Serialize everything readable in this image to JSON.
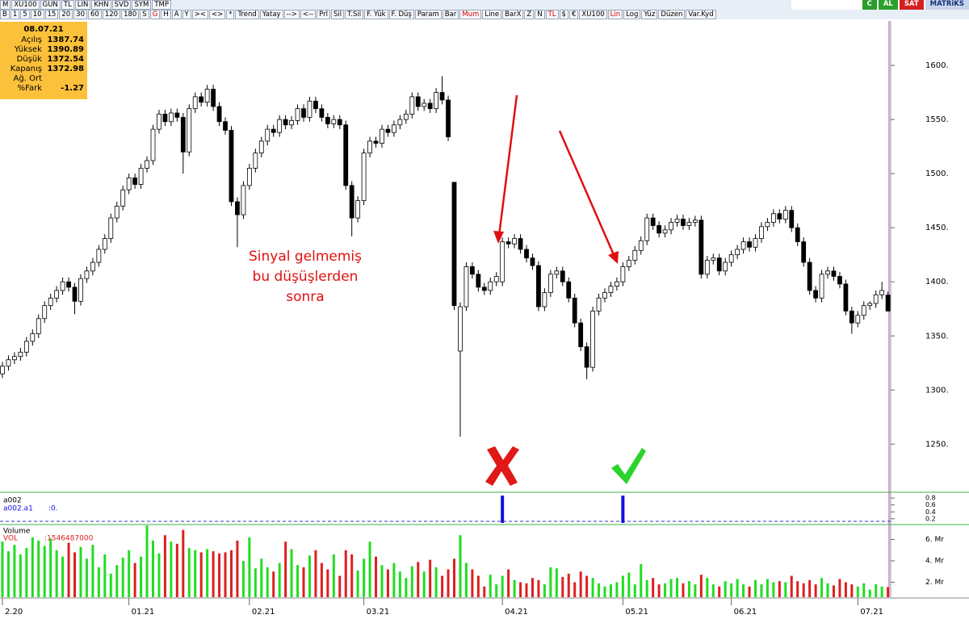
{
  "toolbar": {
    "row1_left": [
      "M",
      "XU100",
      "GUN",
      "TL",
      "LIN",
      "KHN",
      "SVD",
      "SYM",
      "TMP"
    ],
    "row1_right": [
      "C",
      "AL",
      "SAT",
      "MATRiKS"
    ],
    "row2": [
      "B",
      "1",
      "5",
      "10",
      "15",
      "20",
      "30",
      "60",
      "120",
      "180",
      "S",
      "G",
      "H",
      "A",
      "Y",
      "><",
      "<>",
      "*",
      "Trend",
      "Yatay",
      "-->",
      "<--",
      "Prl",
      "Sil",
      "T.Sil",
      "F. Yük",
      "F. Düş",
      "Param",
      "Bar",
      "Mum",
      "Line",
      "BarX",
      "Z",
      "N",
      "TL",
      "$",
      "€",
      "XU100",
      "Lin",
      "Log",
      "Yüz",
      "Düzen",
      "Var.Kyd"
    ]
  },
  "info_box": {
    "date": "08.07.21",
    "labels": [
      "Açılış",
      "Yüksek",
      "Düşük",
      "Kapanış",
      "Ağ. Ort",
      "%Fark"
    ],
    "fark": -1.27
  },
  "chart_data": [
    {
      "type": "candlestick",
      "categories": [
        "2.20",
        null,
        null,
        null,
        null,
        null,
        null,
        null,
        null,
        null,
        null,
        null,
        null,
        null,
        null,
        null,
        null,
        null,
        null,
        null,
        null,
        "01.21",
        null,
        null,
        null,
        null,
        null,
        null,
        null,
        null,
        null,
        null,
        null,
        null,
        null,
        null,
        null,
        null,
        null,
        null,
        null,
        "02.21",
        null,
        null,
        null,
        null,
        null,
        null,
        null,
        null,
        null,
        null,
        null,
        null,
        null,
        null,
        null,
        null,
        null,
        null,
        "03.21",
        null,
        null,
        null,
        null,
        null,
        null,
        null,
        null,
        null,
        null,
        null,
        null,
        null,
        null,
        null,
        null,
        null,
        null,
        null,
        null,
        null,
        null,
        "04.21",
        null,
        null,
        null,
        null,
        null,
        null,
        null,
        null,
        null,
        null,
        null,
        null,
        null,
        null,
        null,
        null,
        null,
        null,
        null,
        "05.21",
        null,
        null,
        null,
        null,
        null,
        null,
        null,
        null,
        null,
        null,
        null,
        null,
        null,
        null,
        null,
        null,
        null,
        "06.21",
        null,
        null,
        null,
        null,
        null,
        null,
        null,
        null,
        null,
        null,
        null,
        null,
        null,
        null,
        null,
        null,
        null,
        null,
        null,
        null,
        "07.21",
        null,
        null,
        null,
        null,
        null
      ],
      "open": [
        1315,
        1322,
        1328,
        1331,
        1335,
        1345,
        1352,
        1366,
        1378,
        1385,
        1392,
        1400,
        1395,
        1382,
        1403,
        1410,
        1418,
        1430,
        1440,
        1459,
        1470,
        1485,
        1496,
        1490,
        1505,
        1512,
        1541,
        1555,
        1548,
        1556,
        1552,
        1520,
        1560,
        1571,
        1566,
        1578,
        1562,
        1548,
        1540,
        1474,
        1462,
        1489,
        1505,
        1519,
        1530,
        1541,
        1538,
        1550,
        1545,
        1549,
        1560,
        1552,
        1567,
        1560,
        1552,
        1546,
        1550,
        1545,
        1489,
        1459,
        1475,
        1519,
        1530,
        1528,
        1541,
        1538,
        1545,
        1550,
        1555,
        1571,
        1562,
        1565,
        1560,
        1575,
        1568,
        1492,
        1336,
        1377,
        1414,
        1407,
        1395,
        1392,
        1400,
        1400,
        1437,
        1435,
        1440,
        1430,
        1422,
        1415,
        1377,
        1390,
        1407,
        1410,
        1400,
        1385,
        1362,
        1340,
        1321,
        1373,
        1385,
        1390,
        1396,
        1400,
        1414,
        1420,
        1429,
        1438,
        1459,
        1452,
        1445,
        1448,
        1455,
        1458,
        1452,
        1455,
        1457,
        1407,
        1420,
        1422,
        1410,
        1418,
        1425,
        1430,
        1437,
        1432,
        1440,
        1451,
        1455,
        1463,
        1458,
        1466,
        1450,
        1437,
        1418,
        1392,
        1385,
        1407,
        1410,
        1405,
        1398,
        1373,
        1362,
        1369,
        1378,
        1380,
        1388,
        1387.74
      ],
      "high": [
        1326,
        1332,
        1335,
        1339,
        1349,
        1356,
        1370,
        1382,
        1389,
        1396,
        1404,
        1404,
        1399,
        1407,
        1414,
        1422,
        1434,
        1444,
        1463,
        1474,
        1489,
        1500,
        1500,
        1509,
        1516,
        1545,
        1559,
        1559,
        1560,
        1560,
        1556,
        1564,
        1575,
        1575,
        1582,
        1582,
        1566,
        1552,
        1544,
        1478,
        1493,
        1509,
        1523,
        1534,
        1545,
        1545,
        1554,
        1554,
        1553,
        1564,
        1564,
        1571,
        1571,
        1564,
        1556,
        1554,
        1554,
        1549,
        1493,
        1479,
        1523,
        1534,
        1534,
        1545,
        1545,
        1549,
        1554,
        1559,
        1575,
        1575,
        1569,
        1569,
        1579,
        1590,
        1572,
        1492,
        1381,
        1418,
        1418,
        1411,
        1399,
        1404,
        1409,
        1441,
        1441,
        1444,
        1444,
        1434,
        1426,
        1419,
        1394,
        1411,
        1414,
        1414,
        1404,
        1389,
        1366,
        1344,
        1377,
        1389,
        1394,
        1400,
        1404,
        1418,
        1424,
        1433,
        1442,
        1463,
        1463,
        1456,
        1452,
        1459,
        1462,
        1462,
        1459,
        1461,
        1461,
        1424,
        1426,
        1426,
        1422,
        1429,
        1434,
        1441,
        1441,
        1444,
        1455,
        1459,
        1467,
        1467,
        1470,
        1470,
        1454,
        1441,
        1422,
        1396,
        1411,
        1414,
        1414,
        1409,
        1402,
        1377,
        1373,
        1382,
        1382,
        1392,
        1400,
        1390.89
      ],
      "low": [
        1311,
        1318,
        1324,
        1327,
        1331,
        1341,
        1348,
        1362,
        1374,
        1381,
        1388,
        1391,
        1370,
        1378,
        1399,
        1406,
        1414,
        1426,
        1436,
        1455,
        1466,
        1481,
        1486,
        1486,
        1501,
        1508,
        1537,
        1544,
        1544,
        1548,
        1500,
        1516,
        1556,
        1562,
        1562,
        1558,
        1544,
        1536,
        1470,
        1432,
        1458,
        1485,
        1501,
        1515,
        1526,
        1534,
        1534,
        1541,
        1541,
        1545,
        1548,
        1548,
        1556,
        1548,
        1542,
        1542,
        1541,
        1485,
        1442,
        1455,
        1471,
        1515,
        1524,
        1524,
        1534,
        1534,
        1541,
        1546,
        1551,
        1558,
        1558,
        1556,
        1556,
        1564,
        1530,
        1374,
        1257,
        1373,
        1403,
        1391,
        1388,
        1388,
        1396,
        1396,
        1431,
        1431,
        1426,
        1418,
        1411,
        1373,
        1373,
        1386,
        1403,
        1396,
        1381,
        1358,
        1336,
        1310,
        1317,
        1369,
        1381,
        1386,
        1392,
        1396,
        1410,
        1416,
        1425,
        1434,
        1448,
        1441,
        1441,
        1444,
        1451,
        1448,
        1448,
        1451,
        1403,
        1403,
        1416,
        1406,
        1406,
        1414,
        1421,
        1426,
        1428,
        1428,
        1436,
        1447,
        1451,
        1454,
        1454,
        1446,
        1433,
        1414,
        1388,
        1381,
        1381,
        1403,
        1401,
        1394,
        1369,
        1352,
        1358,
        1365,
        1374,
        1376,
        1384,
        1372.54
      ],
      "close": [
        1322,
        1328,
        1331,
        1335,
        1345,
        1352,
        1366,
        1378,
        1385,
        1392,
        1400,
        1395,
        1382,
        1403,
        1410,
        1418,
        1430,
        1440,
        1459,
        1470,
        1485,
        1496,
        1490,
        1505,
        1512,
        1541,
        1555,
        1548,
        1556,
        1552,
        1520,
        1560,
        1571,
        1566,
        1578,
        1562,
        1548,
        1540,
        1474,
        1462,
        1489,
        1505,
        1519,
        1530,
        1541,
        1538,
        1550,
        1545,
        1549,
        1560,
        1552,
        1567,
        1560,
        1552,
        1546,
        1550,
        1545,
        1489,
        1459,
        1475,
        1519,
        1530,
        1528,
        1541,
        1538,
        1545,
        1550,
        1555,
        1571,
        1562,
        1565,
        1560,
        1575,
        1568,
        1534,
        1378,
        1377,
        1414,
        1407,
        1395,
        1392,
        1400,
        1405,
        1437,
        1435,
        1440,
        1430,
        1422,
        1415,
        1377,
        1390,
        1407,
        1410,
        1400,
        1385,
        1362,
        1340,
        1321,
        1373,
        1385,
        1390,
        1396,
        1400,
        1414,
        1420,
        1429,
        1438,
        1459,
        1452,
        1445,
        1448,
        1455,
        1458,
        1452,
        1455,
        1457,
        1407,
        1420,
        1422,
        1410,
        1418,
        1425,
        1430,
        1437,
        1432,
        1440,
        1451,
        1455,
        1463,
        1458,
        1466,
        1450,
        1437,
        1418,
        1392,
        1385,
        1407,
        1410,
        1405,
        1398,
        1373,
        1362,
        1369,
        1378,
        1380,
        1388,
        1392,
        1372.98
      ],
      "up_color": "#ffffff",
      "down_color": "#000000",
      "ylim": [
        1207,
        1647
      ],
      "yticks": [
        {
          "value": 1250,
          "label": "1250."
        },
        {
          "value": 1300,
          "label": "1300."
        },
        {
          "value": 1350,
          "label": "1350."
        },
        {
          "value": 1400,
          "label": "1400."
        },
        {
          "value": 1450,
          "label": "1450."
        },
        {
          "value": 1500,
          "label": "1500."
        },
        {
          "value": 1550,
          "label": "1550."
        },
        {
          "value": 1600,
          "label": "1600."
        }
      ],
      "annotations": [
        "Sinyal gelmemiş",
        "bu düşüşlerden",
        "sonra"
      ]
    },
    {
      "type": "bar",
      "title": "a002",
      "series": [
        {
          "name": "a002.a1",
          "color": "#1010e0",
          "last_label": ":0.",
          "values": [
            0,
            0,
            0,
            0,
            0,
            0,
            0,
            0,
            0,
            0,
            0,
            0,
            0,
            0,
            0,
            0,
            0,
            0,
            0,
            0,
            0,
            0,
            0,
            0,
            0,
            0,
            0,
            0,
            0,
            0,
            0,
            0,
            0,
            0,
            0,
            0,
            0,
            0,
            0,
            0,
            0,
            0,
            0,
            0,
            0,
            0,
            0,
            0,
            0,
            0,
            0,
            0,
            0,
            0,
            0,
            0,
            0,
            0,
            0,
            0,
            0,
            0,
            0,
            0,
            0,
            0,
            0,
            0,
            0,
            0,
            0,
            0,
            0,
            0,
            0,
            0,
            0,
            0,
            0,
            0,
            0,
            0,
            0,
            0.87,
            0,
            0,
            0,
            0,
            0,
            0,
            0,
            0,
            0,
            0,
            0,
            0,
            0,
            0,
            0,
            0,
            0,
            0,
            0,
            0.87,
            0,
            0,
            0,
            0,
            0,
            0,
            0,
            0,
            0,
            0,
            0,
            0,
            0,
            0,
            0,
            0,
            0,
            0,
            0,
            0,
            0,
            0,
            0,
            0,
            0,
            0,
            0,
            0,
            0,
            0,
            0,
            0,
            0,
            0,
            0,
            0,
            0,
            0,
            0,
            0,
            0,
            0,
            0,
            0
          ]
        }
      ],
      "ylim": [
        0.08,
        0.92
      ],
      "yticks": [
        0.2,
        0.4,
        0.6,
        0.8
      ]
    },
    {
      "type": "bar",
      "title": "Volume",
      "series": [
        {
          "name": "VOL",
          "last_label": ":1546487000",
          "up_color": "#22dd22",
          "down_color": "#dd2020",
          "values": [
            5800000000.0,
            4900000000.0,
            5500000000.0,
            4600000000.0,
            5200000000.0,
            6200000000.0,
            5900000000.0,
            5400000000.0,
            6100000000.0,
            5000000000.0,
            4400000000.0,
            5700000000.0,
            4800000000.0,
            5300000000.0,
            4200000000.0,
            5500000000.0,
            3400000000.0,
            4600000000.0,
            2800000000.0,
            3600000000.0,
            4300000000.0,
            5000000000.0,
            3800000000.0,
            4400000000.0,
            7300000000.0,
            5900000000.0,
            4700000000.0,
            6400000000.0,
            5800000000.0,
            5600000000.0,
            6900000000.0,
            5200000000.0,
            5000000000.0,
            4800000000.0,
            5100000000.0,
            4900000000.0,
            4700000000.0,
            4800000000.0,
            5000000000.0,
            5900000000.0,
            4000000000.0,
            6200000000.0,
            3300000000.0,
            4200000000.0,
            3400000000.0,
            3000000000.0,
            3800000000.0,
            5800000000.0,
            5100000000.0,
            3600000000.0,
            3400000000.0,
            4500000000.0,
            5000000000.0,
            3800000000.0,
            3200000000.0,
            4600000000.0,
            2600000000.0,
            5000000000.0,
            4600000000.0,
            3100000000.0,
            4200000000.0,
            5800000000.0,
            4400000000.0,
            3600000000.0,
            3200000000.0,
            3800000000.0,
            3000000000.0,
            2400000000.0,
            3500000000.0,
            3900000000.0,
            3000000000.0,
            4100000000.0,
            3400000000.0,
            2600000000.0,
            3200000000.0,
            4200000000.0,
            6400000000.0,
            3800000000.0,
            3200000000.0,
            2600000000.0,
            1600000000.0,
            2700000000.0,
            1800000000.0,
            2600000000.0,
            3200000000.0,
            2200000000.0,
            2000000000.0,
            1900000000.0,
            2400000000.0,
            2200000000.0,
            1800000000.0,
            3400000000.0,
            3300000000.0,
            2500000000.0,
            2800000000.0,
            2000000000.0,
            3000000000.0,
            2600000000.0,
            2400000000.0,
            1900000000.0,
            1600000000.0,
            1800000000.0,
            2000000000.0,
            2600000000.0,
            2900000000.0,
            1800000000.0,
            3700000000.0,
            2200000000.0,
            2400000000.0,
            1800000000.0,
            1900000000.0,
            2300000000.0,
            2400000000.0,
            1900000000.0,
            2100000000.0,
            1800000000.0,
            2700000000.0,
            2400000000.0,
            1800000000.0,
            1600000000.0,
            2100000000.0,
            1900000000.0,
            2300000000.0,
            1800000000.0,
            1600000000.0,
            2200000000.0,
            1800000000.0,
            2300000000.0,
            2000000000.0,
            2100000000.0,
            2000000000.0,
            2600000000.0,
            2100000000.0,
            1900000000.0,
            2200000000.0,
            1800000000.0,
            2400000000.0,
            1900000000.0,
            1700000000.0,
            2300000000.0,
            2000000000.0,
            1800000000.0,
            1600000000.0,
            1900000000.0,
            1300000000.0,
            1800000000.0,
            1600000000.0,
            1546487000
          ]
        }
      ],
      "ylim": [
        600000000,
        7400000000
      ],
      "yticks": [
        {
          "value": 2000000000,
          "label": "2. Mr"
        },
        {
          "value": 4000000000,
          "label": "4. Mr"
        },
        {
          "value": 6000000000,
          "label": "6. Mr"
        }
      ]
    }
  ]
}
